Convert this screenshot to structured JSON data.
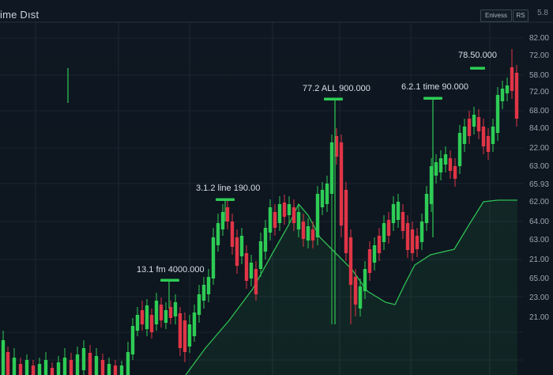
{
  "header": {
    "title": "ime Dıst",
    "btn_1": "Enivess",
    "btn_2": "RS",
    "corner": "5.8"
  },
  "annotations": [
    "78.50.000",
    "77.2 ALL 900.000",
    "6.2.1 time 90.000",
    "3.1.2 line 190.00",
    "13.1 fm 4000.000"
  ],
  "price_axis": [
    "82.00",
    "72.00",
    "58.00",
    "72.00",
    "68.00",
    "84.00",
    "22.00",
    "63.00",
    "65.93",
    "62.00",
    "64.00",
    "63.00",
    "21.00",
    "65.00",
    "23.00",
    "21.00"
  ],
  "colors": {
    "up": "#2ecc55",
    "down": "#e03546",
    "area_line": "#2fbf54",
    "background": "#0e1620"
  }
}
